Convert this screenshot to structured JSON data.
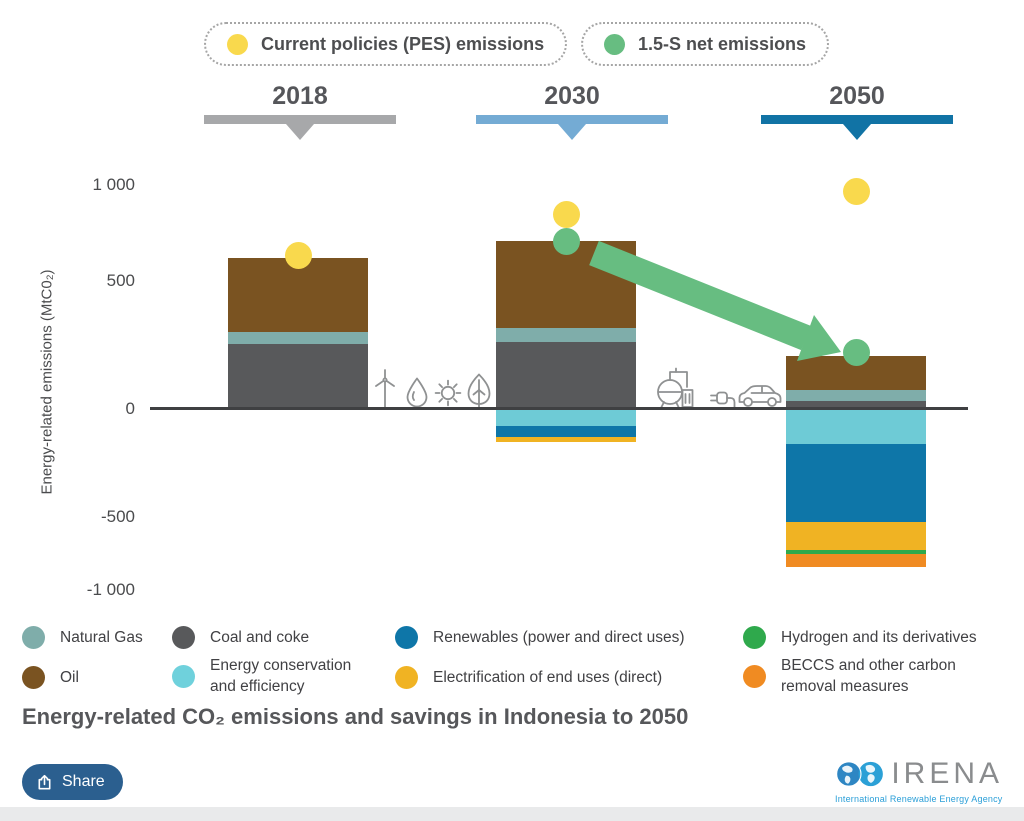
{
  "top_legend": {
    "items": [
      {
        "label": "Current policies (PES) emissions",
        "color": "#f9d94d"
      },
      {
        "label": "1.5-S net emissions",
        "color": "#67bd81"
      }
    ]
  },
  "years": [
    {
      "label": "2018",
      "color": "#a7a8aa"
    },
    {
      "label": "2030",
      "color": "#74abd4"
    },
    {
      "label": "2050",
      "color": "#1173a5"
    }
  ],
  "chart_data": {
    "type": "bar",
    "stacked": true,
    "categories": [
      "2018",
      "2030",
      "2050"
    ],
    "unit": "MtCO2",
    "ylabel": "Energy-related emissions (MtC0₂)",
    "yticks": [
      "1 000",
      "500",
      "0",
      "-500",
      "-1 000"
    ],
    "ylim": [
      -1000,
      1000
    ],
    "series": [
      {
        "name": "Coal and coke",
        "color": "#58595b",
        "values": [
          255,
          260,
          30
        ]
      },
      {
        "name": "Natural Gas",
        "color": "#7fadaa",
        "values": [
          45,
          55,
          45
        ]
      },
      {
        "name": "Oil",
        "color": "#7a5321",
        "values": [
          290,
          340,
          130
        ]
      },
      {
        "name": "Energy conservation and efficiency",
        "color": "#6ecbd6",
        "values": [
          0,
          -65,
          -135
        ]
      },
      {
        "name": "Renewables (power and direct uses)",
        "color": "#0e76a8",
        "values": [
          0,
          -45,
          -305
        ]
      },
      {
        "name": "Electrification of end uses (direct)",
        "color": "#f0b323",
        "values": [
          0,
          -20,
          -110
        ]
      },
      {
        "name": "Hydrogen and its derivatives",
        "color": "#2fa94c",
        "values": [
          0,
          0,
          -15
        ]
      },
      {
        "name": "BECCS and other carbon removal measures",
        "color": "#f08b22",
        "values": [
          0,
          0,
          -50
        ]
      }
    ],
    "markers": [
      {
        "name": "Current policies (PES) emissions",
        "color": "#f9d94d",
        "values": [
          600,
          760,
          850
        ]
      },
      {
        "name": "1.5-S net emissions",
        "color": "#67bd81",
        "values": [
          null,
          655,
          220
        ]
      }
    ]
  },
  "legend": {
    "items": [
      {
        "label": "Natural Gas",
        "color": "#7fadaa"
      },
      {
        "label": "Coal and coke",
        "color": "#58595b"
      },
      {
        "label": "Renewables (power and direct uses)",
        "color": "#0e76a8"
      },
      {
        "label": "Hydrogen and its derivatives",
        "color": "#2fa94c"
      },
      {
        "label": "Oil",
        "color": "#7a5321"
      },
      {
        "label": "Energy conservation and efficiency",
        "color": "#6fd1dc"
      },
      {
        "label": "Electrification of end uses (direct)",
        "color": "#f0b323"
      },
      {
        "label": "BECCS and other carbon removal measures",
        "color": "#f08b22"
      }
    ]
  },
  "title": "Energy-related CO₂ emissions and savings in Indonesia to 2050",
  "share": {
    "label": "Share",
    "color": "#2b5f8f"
  },
  "logo": {
    "name": "IRENA",
    "caption": "International Renewable Energy Agency"
  },
  "icons": {
    "between_2018_2030": [
      "wind-turbine",
      "water-drop",
      "sun",
      "leaf"
    ],
    "between_2030_2050": [
      "hydrogen-tank",
      "plug",
      "car"
    ]
  }
}
